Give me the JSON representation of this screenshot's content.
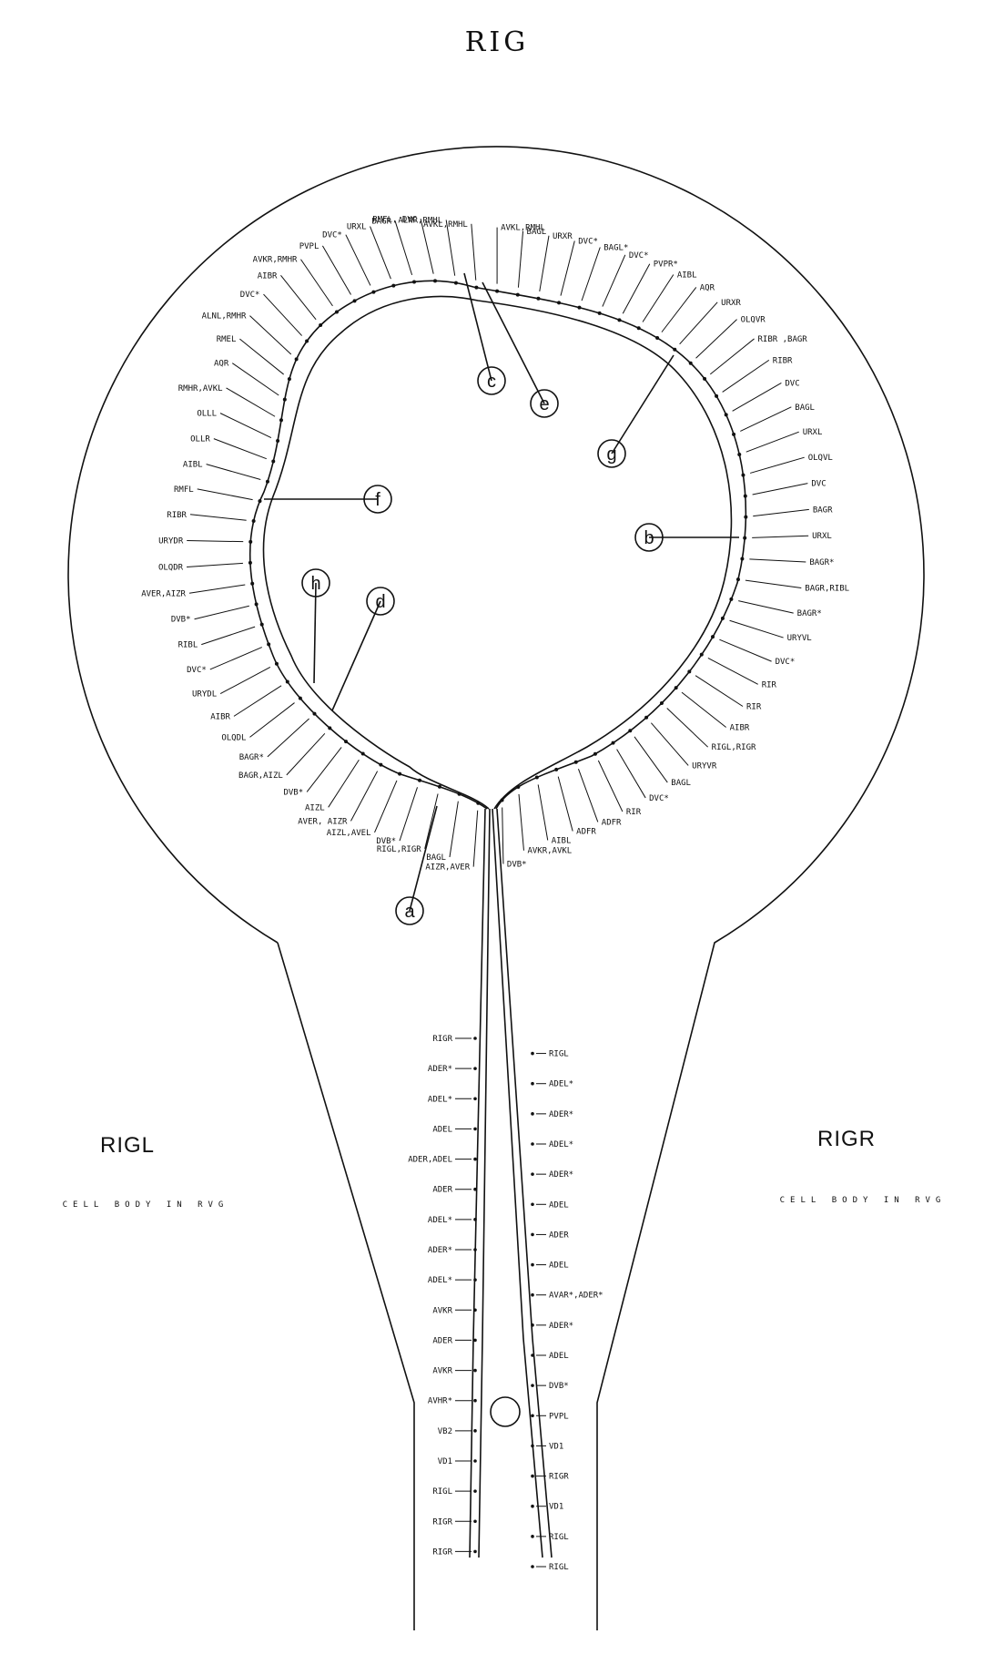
{
  "title": "RIG",
  "left_cell": {
    "name": "RIGL",
    "note": "CELL  BODY  IN  RVG"
  },
  "right_cell": {
    "name": "RIGR",
    "note": "CELL  BODY  IN  RVG"
  },
  "callouts": [
    "a",
    "b",
    "c",
    "d",
    "e",
    "f",
    "g",
    "h"
  ],
  "labels_nerve_ring": [
    "AIZR,AVER",
    "BAGL",
    "RIGL,RIGR",
    "DVB*",
    "AIZL,AVEL",
    "AVER, AIZR",
    "AIZL",
    "DVB*",
    "BAGR,AIZL",
    "BAGR*",
    "OLQDL",
    "AIBR",
    "URYDL",
    "DVC*",
    "RIBL",
    "DVB*",
    "AVER,AIZR",
    "OLQDR",
    "URYDR",
    "RIBR",
    "RMFL",
    "AIBL",
    "OLLR",
    "OLLL",
    "RMHR,AVKL",
    "AQR",
    "RMEL",
    "ALNL,RMHR",
    "DVC*",
    "AIBR",
    "AVKR,RMHR",
    "PVPL",
    "DVC*",
    "URXL",
    "BAGR",
    "RMFL, DVC",
    "ALNR,RMHL",
    "AVKL,RMHL",
    "AVKL,RMHL",
    "BAGL",
    "URXR",
    "DVC*",
    "BAGL*",
    "DVC*",
    "PVPR*",
    "AIBL",
    "AQR",
    "URXR",
    "OLQVR",
    "RIBR ,BAGR",
    "RIBR",
    "DVC",
    "BAGL",
    "URXL",
    "OLQVL",
    "DVC",
    "BAGR",
    "URXL",
    "BAGR*",
    "BAGR,RIBL",
    "BAGR*",
    "URYVL",
    "DVC*",
    "RIR",
    "RIR",
    "AIBR",
    "RIGL,RIGR",
    "URYVR",
    "BAGL",
    "DVC*",
    "RIR",
    "ADFR",
    "ADFR",
    "AIBL",
    "AVKR,AVKL",
    "DVB*"
  ],
  "labels_stalk": [
    "RIGR",
    "RIGL",
    "ADER*",
    "ADEL*",
    "ADEL*",
    "ADER*",
    "ADEL",
    "ADEL*",
    "ADER,ADEL",
    "ADER*",
    "ADER",
    "ADEL",
    "ADEL*",
    "ADER",
    "ADER*",
    "ADEL",
    "ADEL*",
    "AVAR*,ADER*",
    "AVKR",
    "ADER*",
    "ADER",
    "ADEL",
    "AVKR",
    "DVB*",
    "AVHR*",
    "PVPL",
    "VB2",
    "VD1",
    "VD1",
    "RIGR",
    "RIGL",
    "VD1",
    "RIGR",
    "RIGL",
    "RIGR",
    "RIGL"
  ]
}
